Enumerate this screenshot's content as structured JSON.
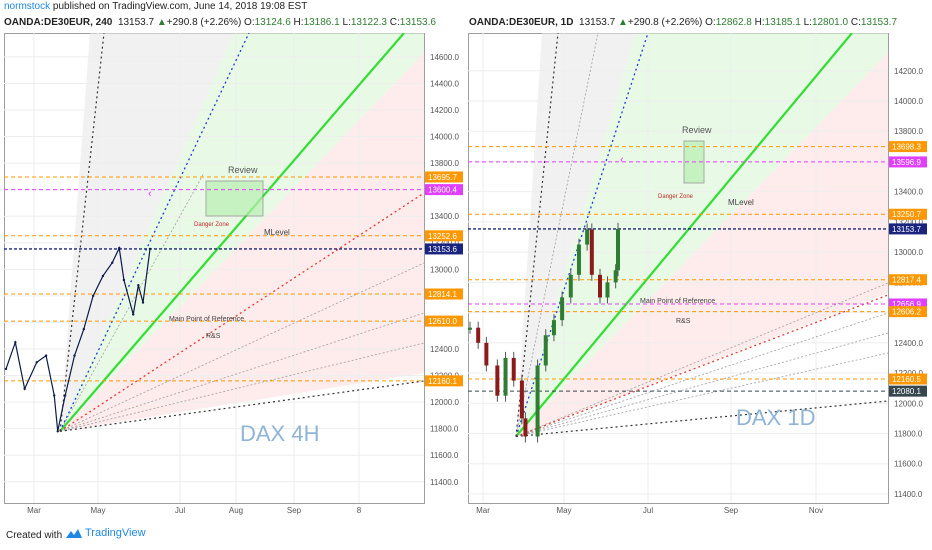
{
  "header": {
    "username": "normstock",
    "published": "published on TradingView.com, June 14, 2018 19:08 EST"
  },
  "left": {
    "symbol": "OANDA:DE30EUR, 240",
    "last": "13153.7",
    "change": "+290.8 (+2.26%)",
    "o": "13124.6",
    "h": "13186.1",
    "l": "13122.3",
    "c": "13153.6",
    "watermark": "DAX 4H"
  },
  "right": {
    "symbol": "OANDA:DE30EUR, 1D",
    "last": "13153.7",
    "change": "+290.8 (+2.26%)",
    "o": "12862.8",
    "h": "13185.1",
    "l": "12801.0",
    "c": "13153.7",
    "watermark": "DAX 1D"
  },
  "footer": {
    "created": "Created with",
    "brand": "TradingView"
  },
  "chart_data": [
    {
      "type": "line",
      "title": "OANDA:DE30EUR, 240",
      "xlabel": "",
      "ylabel": "",
      "ylim": [
        11240,
        14780
      ],
      "x_ticks": [
        "Mar",
        "May",
        "Jul",
        "Aug",
        "Sep",
        "8"
      ],
      "y_ticks": [
        11400,
        11600,
        11800,
        12000,
        12200,
        12400,
        12600,
        12800,
        13000,
        13200,
        13400,
        13600,
        13800,
        14000,
        14200,
        14400,
        14600
      ],
      "series": [
        {
          "x": [
            "Feb 12",
            "Feb 20",
            "Feb 28",
            "Mar 8",
            "Mar 16",
            "Mar 23",
            "Mar 26",
            "Apr 2",
            "Apr 10",
            "Apr 18",
            "Apr 26",
            "May 4",
            "May 12",
            "May 18",
            "May 22",
            "May 30",
            "Jun 4",
            "Jun 8",
            "Jun 14"
          ],
          "values": [
            12250,
            12450,
            12100,
            12300,
            12350,
            12050,
            11780,
            12050,
            12350,
            12550,
            12800,
            12950,
            13050,
            13160,
            12920,
            12660,
            12880,
            12750,
            13153.6
          ]
        }
      ],
      "price_labels": [
        {
          "value": 13695.7,
          "text": "13695.7",
          "style": "orange"
        },
        {
          "value": 13600.4,
          "text": "13600.4",
          "style": "magenta"
        },
        {
          "value": 13252.6,
          "text": "13252.6",
          "style": "orange"
        },
        {
          "value": 13153.6,
          "text": "13153.6",
          "style": "current"
        },
        {
          "value": 12814.1,
          "text": "12814.1",
          "style": "orange"
        },
        {
          "value": 12610.0,
          "text": "12610.0",
          "style": "orange"
        },
        {
          "value": 12160.1,
          "text": "12160.1",
          "style": "orange"
        }
      ],
      "annotations": [
        "Review",
        "Danger Zone",
        "MLevel",
        "Main Point of Reference",
        "R&S"
      ]
    },
    {
      "type": "candlestick",
      "title": "OANDA:DE30EUR, 1D",
      "xlabel": "",
      "ylabel": "",
      "ylim": [
        11340,
        14450
      ],
      "x_ticks": [
        "Mar",
        "May",
        "Jul",
        "Sep",
        "Nov"
      ],
      "y_ticks": [
        11400,
        11600,
        11800,
        12000,
        12200,
        12400,
        12600,
        12800,
        13000,
        13200,
        13400,
        13600,
        13800,
        14000,
        14200
      ],
      "series": [
        {
          "x": [
            "Feb 9",
            "Feb 16",
            "Feb 23",
            "Mar 2",
            "Mar 9",
            "Mar 16",
            "Mar 23",
            "Mar 26",
            "Apr 6",
            "Apr 13",
            "Apr 20",
            "Apr 27",
            "May 4",
            "May 11",
            "May 18",
            "May 22",
            "May 29",
            "Jun 5",
            "Jun 12",
            "Jun 14"
          ],
          "values": [
            12500,
            12400,
            12250,
            12050,
            12300,
            12150,
            11900,
            11780,
            12250,
            12450,
            12550,
            12700,
            12850,
            13050,
            13150,
            12850,
            12700,
            12800,
            12880,
            13153.7
          ]
        }
      ],
      "price_labels": [
        {
          "value": 13698.3,
          "text": "13698.3",
          "style": "orange"
        },
        {
          "value": 13596.9,
          "text": "13596.9",
          "style": "magenta"
        },
        {
          "value": 13250.7,
          "text": "13250.7",
          "style": "orange"
        },
        {
          "value": 13153.7,
          "text": "13153.7",
          "style": "current"
        },
        {
          "value": 12817.4,
          "text": "12817.4",
          "style": "orange"
        },
        {
          "value": 12656.9,
          "text": "12656.9",
          "style": "magenta"
        },
        {
          "value": 12606.2,
          "text": "12606.2",
          "style": "orange"
        },
        {
          "value": 12160.5,
          "text": "12160.5",
          "style": "orange"
        },
        {
          "value": 12080.1,
          "text": "12080.1",
          "style": "dark"
        }
      ],
      "annotations": [
        "Review",
        "Danger Zone",
        "MLevel",
        "Main Point of Reference",
        "R&S"
      ]
    }
  ],
  "colors": {
    "orange": "#ff9800",
    "magenta": "#e040fb",
    "current": "#1a237e",
    "dark": "#37474f",
    "green": "#33dd33",
    "blue": "#1e3adc",
    "red": "#e53935",
    "up": "#2e7d32",
    "down": "#8b1a1a"
  }
}
